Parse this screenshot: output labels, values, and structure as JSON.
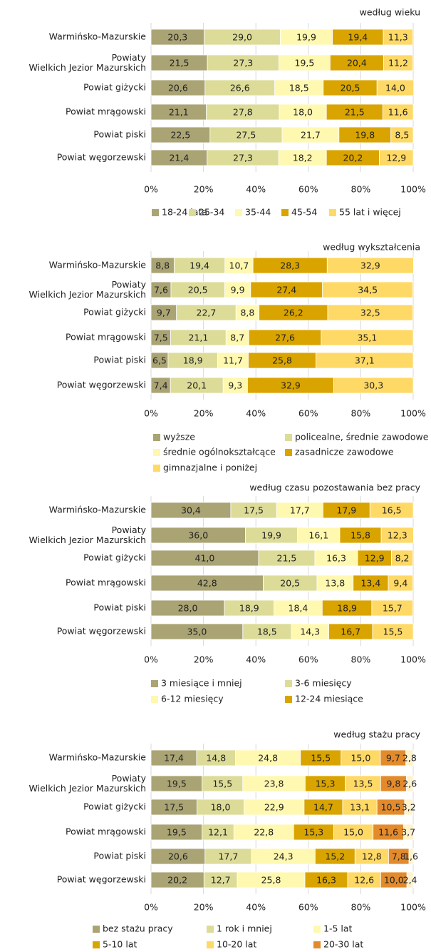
{
  "chart_data": [
    {
      "type": "stacked-bar-h",
      "title": "według wieku",
      "categories": [
        "Warmińsko-Mazurskie",
        "Powiaty\nWielkich Jezior Mazurskich",
        "Powiat giżycki",
        "Powiat mrągowski",
        "Powiat piski",
        "Powiat węgorzewski"
      ],
      "xlim": [
        0,
        100
      ],
      "grid": true,
      "xticks": [
        {
          "value": 0,
          "label": "0%"
        },
        {
          "value": 20,
          "label": "20%"
        },
        {
          "value": 40,
          "label": "40%"
        },
        {
          "value": 60,
          "label": "60%"
        },
        {
          "value": 80,
          "label": "80%"
        },
        {
          "value": 100,
          "label": "100%"
        }
      ],
      "series": [
        {
          "name": "18-24 lata",
          "color": "#aaa474",
          "values": [
            20.3,
            21.5,
            20.6,
            21.1,
            22.5,
            21.4
          ],
          "value_labels": [
            "20,3",
            "21,5",
            "20,6",
            "21,1",
            "22,5",
            "21,4"
          ]
        },
        {
          "name": "25-34",
          "color": "#dcdc98",
          "values": [
            29.0,
            27.3,
            26.6,
            27.8,
            27.5,
            27.3
          ],
          "value_labels": [
            "29,0",
            "27,3",
            "26,6",
            "27,8",
            "27,5",
            "27,3"
          ]
        },
        {
          "name": "35-44",
          "color": "#fff8b0",
          "values": [
            19.9,
            19.5,
            18.5,
            18.0,
            21.7,
            18.2
          ],
          "value_labels": [
            "19,9",
            "19,5",
            "18,5",
            "18,0",
            "21,7",
            "18,2"
          ]
        },
        {
          "name": "45-54",
          "color": "#d9a400",
          "values": [
            19.4,
            20.4,
            20.5,
            21.5,
            19.8,
            20.2
          ],
          "value_labels": [
            "19,4",
            "20,4",
            "20,5",
            "21,5",
            "19,8",
            "20,2"
          ]
        },
        {
          "name": "55 lat i więcej",
          "color": "#ffd966",
          "values": [
            11.3,
            11.2,
            14.0,
            11.6,
            8.5,
            12.9
          ],
          "value_labels": [
            "11,3",
            "11,2",
            "14,0",
            "11,6",
            "8,5",
            "12,9"
          ]
        }
      ]
    },
    {
      "type": "stacked-bar-h",
      "title": "według wykształcenia",
      "categories": [
        "Warmińsko-Mazurskie",
        "Powiaty\nWielkich Jezior Mazurskich",
        "Powiat giżycki",
        "Powiat mrągowski",
        "Powiat piski",
        "Powiat węgorzewski"
      ],
      "xlim": [
        0,
        100
      ],
      "grid": true,
      "xticks": [
        {
          "value": 0,
          "label": "0%"
        },
        {
          "value": 20,
          "label": "20%"
        },
        {
          "value": 40,
          "label": "40%"
        },
        {
          "value": 60,
          "label": "60%"
        },
        {
          "value": 80,
          "label": "80%"
        },
        {
          "value": 100,
          "label": "100%"
        }
      ],
      "series": [
        {
          "name": "wyższe",
          "color": "#aaa474",
          "values": [
            8.8,
            7.6,
            9.7,
            7.5,
            6.5,
            7.4
          ],
          "value_labels": [
            "8,8",
            "7,6",
            "9,7",
            "7,5",
            "6,5",
            "7,4"
          ]
        },
        {
          "name": "policealne, średnie zawodowe",
          "color": "#dcdc98",
          "values": [
            19.4,
            20.5,
            22.7,
            21.1,
            18.9,
            20.1
          ],
          "value_labels": [
            "19,4",
            "20,5",
            "22,7",
            "21,1",
            "18,9",
            "20,1"
          ]
        },
        {
          "name": "średnie ogólnokształcące",
          "color": "#fff8b0",
          "values": [
            10.7,
            9.9,
            8.8,
            8.7,
            11.7,
            9.3
          ],
          "value_labels": [
            "10,7",
            "9,9",
            "8,8",
            "8,7",
            "11,7",
            "9,3"
          ]
        },
        {
          "name": "zasadnicze zawodowe",
          "color": "#d9a400",
          "values": [
            28.3,
            27.4,
            26.2,
            27.6,
            25.8,
            32.9
          ],
          "value_labels": [
            "28,3",
            "27,4",
            "26,2",
            "27,6",
            "25,8",
            "32,9"
          ]
        },
        {
          "name": "gimnazjalne i poniżej",
          "color": "#ffd966",
          "values": [
            32.9,
            34.5,
            32.5,
            35.1,
            37.1,
            30.3
          ],
          "value_labels": [
            "32,9",
            "34,5",
            "32,5",
            "35,1",
            "37,1",
            "30,3"
          ]
        }
      ]
    },
    {
      "type": "stacked-bar-h",
      "title": "według czasu pozostawania bez pracy",
      "categories": [
        "Warmińsko-Mazurskie",
        "Powiaty\nWielkich Jezior Mazurskich",
        "Powiat giżycki",
        "Powiat mrągowski",
        "Powiat piski",
        "Powiat węgorzewski"
      ],
      "xlim": [
        0,
        100
      ],
      "grid": true,
      "xticks": [
        {
          "value": 0,
          "label": "0%"
        },
        {
          "value": 20,
          "label": "20%"
        },
        {
          "value": 40,
          "label": "40%"
        },
        {
          "value": 60,
          "label": "60%"
        },
        {
          "value": 80,
          "label": "80%"
        },
        {
          "value": 100,
          "label": "100%"
        }
      ],
      "series": [
        {
          "name": "3 miesiące i mniej",
          "color": "#aaa474",
          "values": [
            30.4,
            36.0,
            41.0,
            42.8,
            28.0,
            35.0
          ],
          "value_labels": [
            "30,4",
            "36,0",
            "41,0",
            "42,8",
            "28,0",
            "35,0"
          ]
        },
        {
          "name": "3-6 miesięcy",
          "color": "#dcdc98",
          "values": [
            17.5,
            19.9,
            21.5,
            20.5,
            18.9,
            18.5
          ],
          "value_labels": [
            "17,5",
            "19,9",
            "21,5",
            "20,5",
            "18,9",
            "18,5"
          ]
        },
        {
          "name": "6-12 miesięcy",
          "color": "#fff8b0",
          "values": [
            17.7,
            16.1,
            16.3,
            13.8,
            18.4,
            14.3
          ],
          "value_labels": [
            "17,7",
            "16,1",
            "16,3",
            "13,8",
            "18,4",
            "14,3"
          ]
        },
        {
          "name": "12-24 miesiące",
          "color": "#d9a400",
          "values": [
            17.9,
            15.8,
            12.9,
            13.4,
            18.9,
            16.7
          ],
          "value_labels": [
            "17,9",
            "15,8",
            "12,9",
            "13,4",
            "18,9",
            "16,7"
          ]
        },
        {
          "color": "#ffd966",
          "values": [
            16.5,
            12.3,
            8.2,
            9.4,
            15.7,
            15.5
          ],
          "value_labels": [
            "16,5",
            "12,3",
            "8,2",
            "9,4",
            "15,7",
            "15,5"
          ]
        }
      ]
    },
    {
      "type": "stacked-bar-h",
      "title": "według stażu pracy",
      "categories": [
        "Warmińsko-Mazurskie",
        "Powiaty\nWielkich Jezior Mazurskich",
        "Powiat giżycki",
        "Powiat mrągowski",
        "Powiat piski",
        "Powiat węgorzewski"
      ],
      "xlim": [
        0,
        100
      ],
      "grid": true,
      "xticks": [
        {
          "value": 0,
          "label": "0%"
        },
        {
          "value": 20,
          "label": "20%"
        },
        {
          "value": 40,
          "label": "40%"
        },
        {
          "value": 60,
          "label": "60%"
        },
        {
          "value": 80,
          "label": "80%"
        },
        {
          "value": 100,
          "label": "100%"
        }
      ],
      "series": [
        {
          "name": "bez stażu pracy",
          "color": "#aaa474",
          "values": [
            17.4,
            19.5,
            17.5,
            19.5,
            20.6,
            20.2
          ],
          "value_labels": [
            "17,4",
            "19,5",
            "17,5",
            "19,5",
            "20,6",
            "20,2"
          ]
        },
        {
          "name": "1 rok i mniej",
          "color": "#dcdc98",
          "values": [
            14.8,
            15.5,
            18.0,
            12.1,
            17.7,
            12.7
          ],
          "value_labels": [
            "14,8",
            "15,5",
            "18,0",
            "12,1",
            "17,7",
            "12,7"
          ]
        },
        {
          "name": "1-5 lat",
          "color": "#fff8b0",
          "values": [
            24.8,
            23.8,
            22.9,
            22.8,
            24.3,
            25.8
          ],
          "value_labels": [
            "24,8",
            "23,8",
            "22,9",
            "22,8",
            "24,3",
            "25,8"
          ]
        },
        {
          "name": "5-10 lat",
          "color": "#d9a400",
          "values": [
            15.5,
            15.3,
            14.7,
            15.3,
            15.2,
            16.3
          ],
          "value_labels": [
            "15,5",
            "15,3",
            "14,7",
            "15,3",
            "15,2",
            "16,3"
          ]
        },
        {
          "name": "10-20 lat",
          "color": "#ffd966",
          "values": [
            15.0,
            13.5,
            13.1,
            15.0,
            12.8,
            12.6
          ],
          "value_labels": [
            "15,0",
            "13,5",
            "13,1",
            "15,0",
            "12,8",
            "12,6"
          ]
        },
        {
          "name": "20-30 lat",
          "color": "#e38b2c",
          "values": [
            9.7,
            9.8,
            10.5,
            11.6,
            7.8,
            10.0
          ],
          "value_labels": [
            "9,7",
            "9,8",
            "10,5",
            "11,6",
            "7,8",
            "10,0"
          ]
        },
        {
          "color": "#fff2cc",
          "values": [
            2.8,
            2.6,
            3.2,
            3.7,
            1.6,
            2.4
          ],
          "value_labels": [
            "2,8",
            "2,6",
            "3,2",
            "3,7",
            "1,6",
            "2,4"
          ]
        }
      ]
    }
  ]
}
